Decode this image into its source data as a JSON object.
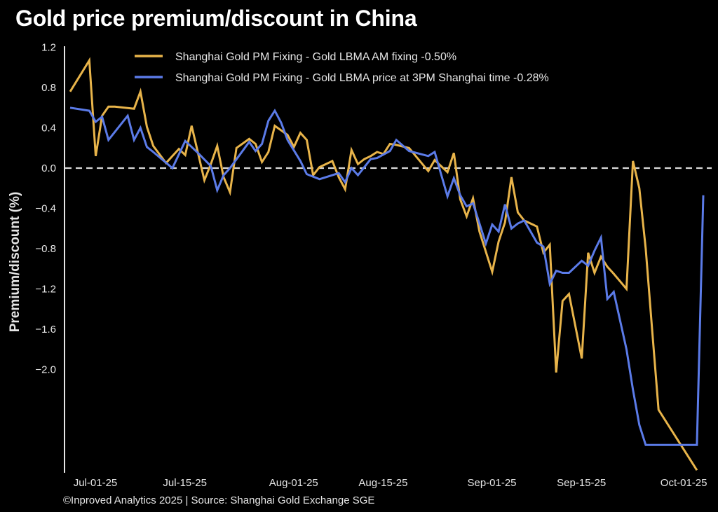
{
  "page": {
    "title": "Gold price premium/discount in China",
    "footer": "©Inproved Analytics 2025 | Source: Shanghai Gold Exchange SGE"
  },
  "chart_data": {
    "type": "line",
    "title": "Gold price premium/discount in China",
    "xlabel": "",
    "ylabel": "Premium/discount (%)",
    "ylim": [
      -3.0,
      1.2
    ],
    "yticks": [
      "1.2",
      "0.8",
      "0.4",
      "0.0",
      "−0.4",
      "−0.8",
      "−1.2",
      "−1.6",
      "−2.0"
    ],
    "ytick_values": [
      1.2,
      0.8,
      0.4,
      0.0,
      -0.4,
      -0.8,
      -1.2,
      -1.6,
      -2.0
    ],
    "xticks": [
      {
        "label": "Jul-01-25",
        "day": 0
      },
      {
        "label": "Jul-15-25",
        "day": 14
      },
      {
        "label": "Aug-01-25",
        "day": 31
      },
      {
        "label": "Aug-15-25",
        "day": 45
      },
      {
        "label": "Sep-01-25",
        "day": 62
      },
      {
        "label": "Sep-15-25",
        "day": 76
      },
      {
        "label": "Oct-01-25",
        "day": 92
      }
    ],
    "x_unit": "days since Jul-01-25",
    "xlim": [
      0,
      99
    ],
    "grid": false,
    "reference_line": {
      "y": 0.0,
      "style": "dashed",
      "color": "#d9d9d9"
    },
    "legend_position": "top-center",
    "series": [
      {
        "name": "Shanghai Gold PM Fixing - Gold LBMA AM fixing -0.50%",
        "color": "#e8b44a",
        "x": [
          0,
          3,
          4,
          5,
          6,
          7,
          10,
          11,
          12,
          13,
          15,
          16,
          17,
          18,
          19,
          21,
          22,
          23,
          24,
          25,
          26,
          28,
          29,
          30,
          31,
          32,
          34,
          35,
          36,
          37,
          38,
          39,
          41,
          42,
          43,
          44,
          45,
          46,
          47,
          48,
          49,
          50,
          51,
          53,
          56,
          57,
          59,
          60,
          61,
          62,
          63,
          64,
          66,
          67,
          68,
          69,
          70,
          71,
          73,
          74,
          75,
          76,
          77,
          78,
          80,
          81,
          82,
          83,
          84,
          85,
          87,
          88,
          89,
          90,
          91,
          92,
          98
        ],
        "values": [
          0.76,
          1.07,
          0.12,
          0.52,
          0.61,
          0.61,
          0.59,
          0.76,
          0.41,
          0.22,
          0.05,
          0.12,
          0.19,
          0.13,
          0.42,
          -0.12,
          0.04,
          0.22,
          -0.09,
          -0.24,
          0.2,
          0.29,
          0.24,
          0.06,
          0.16,
          0.42,
          0.33,
          0.21,
          0.35,
          0.28,
          -0.07,
          0.01,
          0.07,
          -0.09,
          -0.21,
          0.18,
          0.04,
          0.09,
          0.12,
          0.16,
          0.14,
          0.24,
          0.23,
          0.2,
          -0.03,
          0.08,
          -0.04,
          0.15,
          -0.31,
          -0.48,
          -0.3,
          -0.63,
          -1.03,
          -0.73,
          -0.54,
          -0.09,
          -0.44,
          -0.52,
          -0.58,
          -0.84,
          -0.76,
          -2.03,
          -1.32,
          -1.25,
          -1.89,
          -0.84,
          -1.04,
          -0.88,
          -0.98,
          -1.05,
          -1.2,
          0.07,
          -0.2,
          -0.8,
          -1.6,
          -2.4,
          -3.0
        ]
      },
      {
        "name": "Shanghai Gold PM Fixing - Gold LBMA price at 3PM Shanghai time -0.28%",
        "color": "#5b7be8",
        "x": [
          0,
          3,
          4,
          5,
          6,
          9,
          10,
          11,
          12,
          13,
          16,
          18,
          20,
          22,
          23,
          24,
          25,
          28,
          29,
          30,
          31,
          32,
          33,
          34,
          36,
          37,
          39,
          41,
          42,
          43,
          44,
          45,
          47,
          48,
          50,
          51,
          53,
          56,
          57,
          59,
          60,
          61,
          62,
          63,
          64,
          65,
          66,
          67,
          68,
          69,
          70,
          71,
          73,
          74,
          75,
          76,
          77,
          78,
          80,
          81,
          82,
          83,
          84,
          85,
          87,
          88,
          89,
          90,
          98,
          99
        ],
        "values": [
          0.6,
          0.57,
          0.46,
          0.51,
          0.28,
          0.52,
          0.28,
          0.4,
          0.21,
          0.16,
          0.0,
          0.27,
          0.15,
          0.02,
          -0.22,
          -0.07,
          0.0,
          0.26,
          0.17,
          0.24,
          0.47,
          0.57,
          0.45,
          0.28,
          0.07,
          -0.06,
          -0.11,
          -0.07,
          -0.05,
          -0.14,
          0.0,
          -0.07,
          0.09,
          0.1,
          0.17,
          0.28,
          0.17,
          0.12,
          0.16,
          -0.28,
          -0.1,
          -0.27,
          -0.38,
          -0.35,
          -0.55,
          -0.75,
          -0.56,
          -0.63,
          -0.36,
          -0.6,
          -0.55,
          -0.52,
          -0.74,
          -0.78,
          -1.15,
          -1.02,
          -1.04,
          -1.04,
          -0.92,
          -0.97,
          -0.82,
          -0.69,
          -1.3,
          -1.23,
          -1.8,
          -2.2,
          -2.55,
          -2.75,
          -2.75,
          -0.27
        ]
      }
    ]
  }
}
